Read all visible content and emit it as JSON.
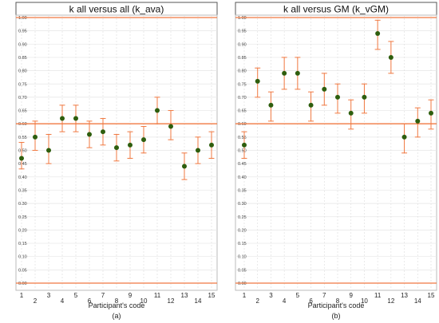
{
  "chart_data": [
    {
      "type": "scatter",
      "title": "k all versus all (k_ava)",
      "xlabel": "Participant's code",
      "caption": "(a)",
      "ylabel": "",
      "ylim": [
        0,
        1
      ],
      "yticks": [
        "0.00",
        "0.05",
        "0.10",
        "0.15",
        "0.20",
        "0.25",
        "0.30",
        "0.35",
        "0.40",
        "0.45",
        "0.50",
        "0.55",
        "0.60",
        "0.65",
        "0.70",
        "0.75",
        "0.80",
        "0.85",
        "0.90",
        "0.95",
        "1.00"
      ],
      "categories": [
        "1",
        "2",
        "3",
        "4",
        "5",
        "6",
        "7",
        "8",
        "9",
        "10",
        "11",
        "12",
        "13",
        "14",
        "15"
      ],
      "values": [
        0.47,
        0.55,
        0.5,
        0.62,
        0.62,
        0.56,
        0.57,
        0.51,
        0.52,
        0.54,
        0.65,
        0.59,
        0.44,
        0.5,
        0.52
      ],
      "error_low": [
        0.43,
        0.5,
        0.45,
        0.57,
        0.57,
        0.51,
        0.52,
        0.46,
        0.47,
        0.49,
        0.6,
        0.54,
        0.39,
        0.45,
        0.47
      ],
      "error_high": [
        0.53,
        0.61,
        0.56,
        0.67,
        0.67,
        0.61,
        0.62,
        0.56,
        0.57,
        0.59,
        0.7,
        0.65,
        0.49,
        0.55,
        0.57
      ],
      "reference_lines": [
        0.0,
        0.6,
        1.0
      ],
      "grid": true,
      "point_color": "#2e5e0e",
      "error_color": "#f07840",
      "reference_color": "#f07840"
    },
    {
      "type": "scatter",
      "title": "k all versus GM (k_vGM)",
      "xlabel": "Participant's code",
      "caption": "(b)",
      "ylabel": "",
      "ylim": [
        0,
        1
      ],
      "yticks": [
        "0.00",
        "0.05",
        "0.10",
        "0.15",
        "0.20",
        "0.25",
        "0.30",
        "0.35",
        "0.40",
        "0.45",
        "0.50",
        "0.55",
        "0.60",
        "0.65",
        "0.70",
        "0.75",
        "0.80",
        "0.85",
        "0.90",
        "0.95",
        "1.00"
      ],
      "categories": [
        "1",
        "2",
        "3",
        "4",
        "5",
        "6",
        "7",
        "8",
        "9",
        "10",
        "11",
        "12",
        "13",
        "14",
        "15"
      ],
      "values": [
        0.52,
        0.76,
        0.67,
        0.79,
        0.79,
        0.67,
        0.73,
        0.7,
        0.64,
        0.7,
        0.94,
        0.85,
        0.55,
        0.61,
        0.64
      ],
      "error_low": [
        0.47,
        0.7,
        0.61,
        0.73,
        0.73,
        0.61,
        0.67,
        0.64,
        0.58,
        0.64,
        0.88,
        0.79,
        0.49,
        0.55,
        0.58
      ],
      "error_high": [
        0.57,
        0.81,
        0.72,
        0.85,
        0.85,
        0.72,
        0.79,
        0.75,
        0.69,
        0.75,
        0.99,
        0.91,
        0.6,
        0.66,
        0.69
      ],
      "reference_lines": [
        0.0,
        0.6,
        1.0
      ],
      "grid": true,
      "point_color": "#2e5e0e",
      "error_color": "#f07840",
      "reference_color": "#f07840"
    }
  ]
}
